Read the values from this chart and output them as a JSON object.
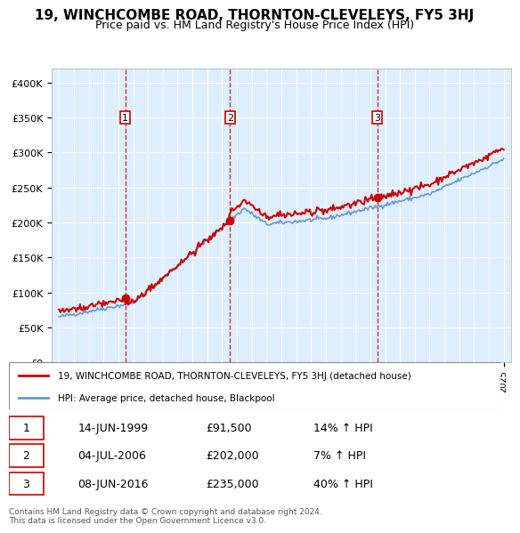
{
  "title": "19, WINCHCOMBE ROAD, THORNTON-CLEVELEYS, FY5 3HJ",
  "subtitle": "Price paid vs. HM Land Registry's House Price Index (HPI)",
  "sale_dates": [
    "1999-06-14",
    "2006-07-04",
    "2016-06-08"
  ],
  "sale_prices": [
    91500,
    202000,
    235000
  ],
  "sale_labels": [
    "1",
    "2",
    "3"
  ],
  "sale_pct": [
    "14% ↑ HPI",
    "7% ↑ HPI",
    "40% ↑ HPI"
  ],
  "legend_line1": "19, WINCHCOMBE ROAD, THORNTON-CLEVELEYS, FY5 3HJ (detached house)",
  "legend_line2": "HPI: Average price, detached house, Blackpool",
  "table_rows": [
    [
      "1",
      "14-JUN-1999",
      "£91,500",
      "14% ↑ HPI"
    ],
    [
      "2",
      "04-JUL-2006",
      "£202,000",
      "7% ↑ HPI"
    ],
    [
      "3",
      "08-JUN-2016",
      "£235,000",
      "40% ↑ HPI"
    ]
  ],
  "footer": "Contains HM Land Registry data © Crown copyright and database right 2024.\nThis data is licensed under the Open Government Licence v3.0.",
  "red_color": "#cc0000",
  "blue_color": "#6699cc",
  "dashed_color": "#cc0000",
  "bg_color": "#ddeeff",
  "ylim": [
    0,
    420000
  ],
  "yticks": [
    0,
    50000,
    100000,
    150000,
    200000,
    250000,
    300000,
    350000,
    400000
  ]
}
